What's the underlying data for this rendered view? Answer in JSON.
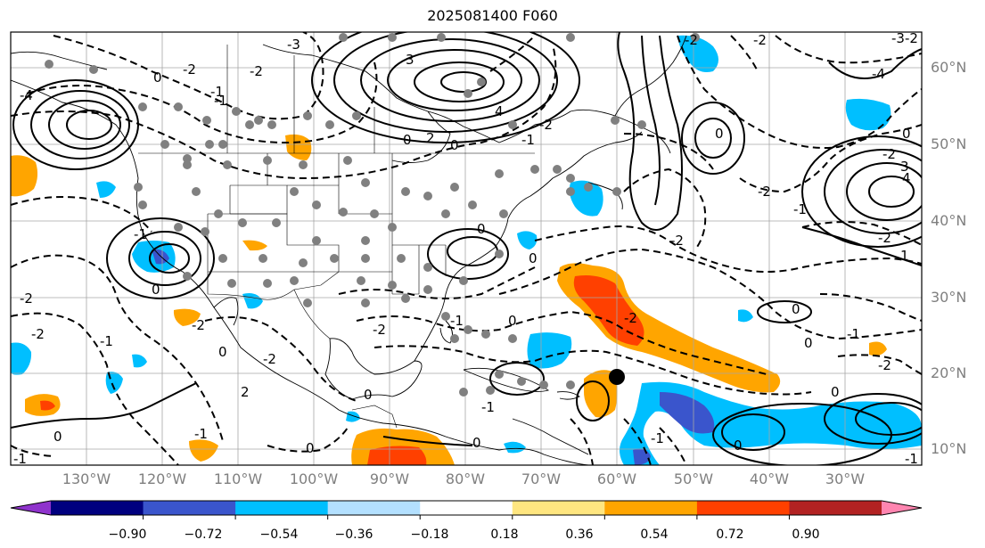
{
  "title": "2025081400 F060",
  "lat_labels": [
    "60°N",
    "50°N",
    "40°N",
    "30°N",
    "20°N",
    "10°N"
  ],
  "lon_labels": [
    "130°W",
    "120°W",
    "110°W",
    "100°W",
    "90°W",
    "80°W",
    "70°W",
    "60°W",
    "50°W",
    "40°W",
    "30°W"
  ],
  "colorbar": {
    "ticks": [
      "−0.90",
      "−0.72",
      "−0.54",
      "−0.36",
      "−0.18",
      "0.18",
      "0.36",
      "0.54",
      "0.72",
      "0.90"
    ],
    "colors": [
      "#8f33cc",
      "#00007f",
      "#3a55cc",
      "#00bfff",
      "#b3e0ff",
      "#ffffff",
      "#ffe680",
      "#ffa500",
      "#ff4000",
      "#b22222",
      "#ff85b0"
    ]
  },
  "contour_labels": [
    "-4",
    "-3",
    "-2",
    "-1",
    "0",
    "0",
    "0",
    "0",
    "0",
    "0",
    "-1",
    "-2",
    "-2",
    "-2",
    "-1",
    "-1",
    "-2",
    "-2",
    "0",
    "0",
    "0",
    "0",
    "-1",
    "-1",
    "3",
    "2",
    "4",
    "-2",
    "-2",
    "-2",
    "-2",
    "-4",
    "1",
    "-3",
    "-2",
    "4",
    "-2",
    "0",
    "-2",
    "-1",
    "0",
    "0",
    "0",
    "0",
    "0",
    "0",
    "0",
    "-2",
    "-1",
    "-1",
    "-1",
    "2",
    "3",
    "-1",
    "-2",
    "-2",
    "-1",
    "-2",
    "-1"
  ],
  "marker": {
    "type": "cyclone-position",
    "lon_lat": [
      -60.5,
      20
    ]
  }
}
